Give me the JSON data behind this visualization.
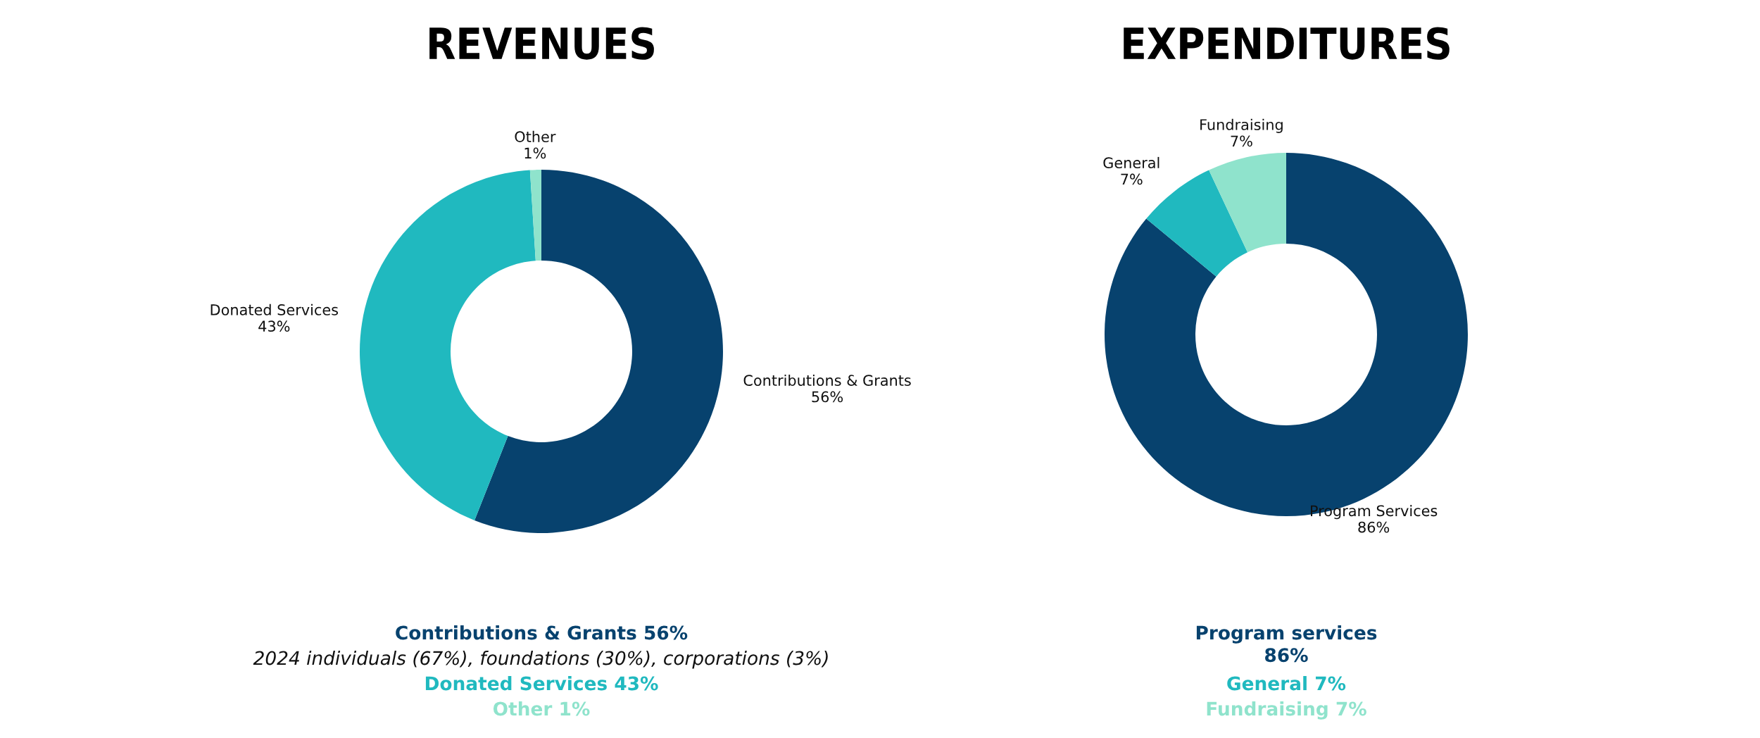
{
  "chart_data": [
    {
      "type": "donut",
      "title": "REVENUES",
      "categories": [
        "Contributions & Grants",
        "Donated Services",
        "Other"
      ],
      "values": [
        56,
        43,
        1
      ],
      "value_labels": [
        "56%",
        "43%",
        "1%"
      ],
      "colors": [
        "#07426e",
        "#20b9bf",
        "#8fe3cc"
      ],
      "annotations": [
        "Contributions & Grants 56%",
        "2024 individuals (67%), foundations (30%), corporations (3%)",
        "Donated Services 43%",
        "Other 1%"
      ]
    },
    {
      "type": "donut",
      "title": "EXPENDITURES",
      "categories": [
        "Program Services",
        "General",
        "Fundraising"
      ],
      "values": [
        86,
        7,
        7
      ],
      "value_labels": [
        "86%",
        "7%",
        "7%"
      ],
      "colors": [
        "#07426e",
        "#20b9bf",
        "#8fe3cc"
      ],
      "annotations": [
        "Program services\n86%",
        "General 7%",
        "Fundraising 7%"
      ]
    }
  ]
}
